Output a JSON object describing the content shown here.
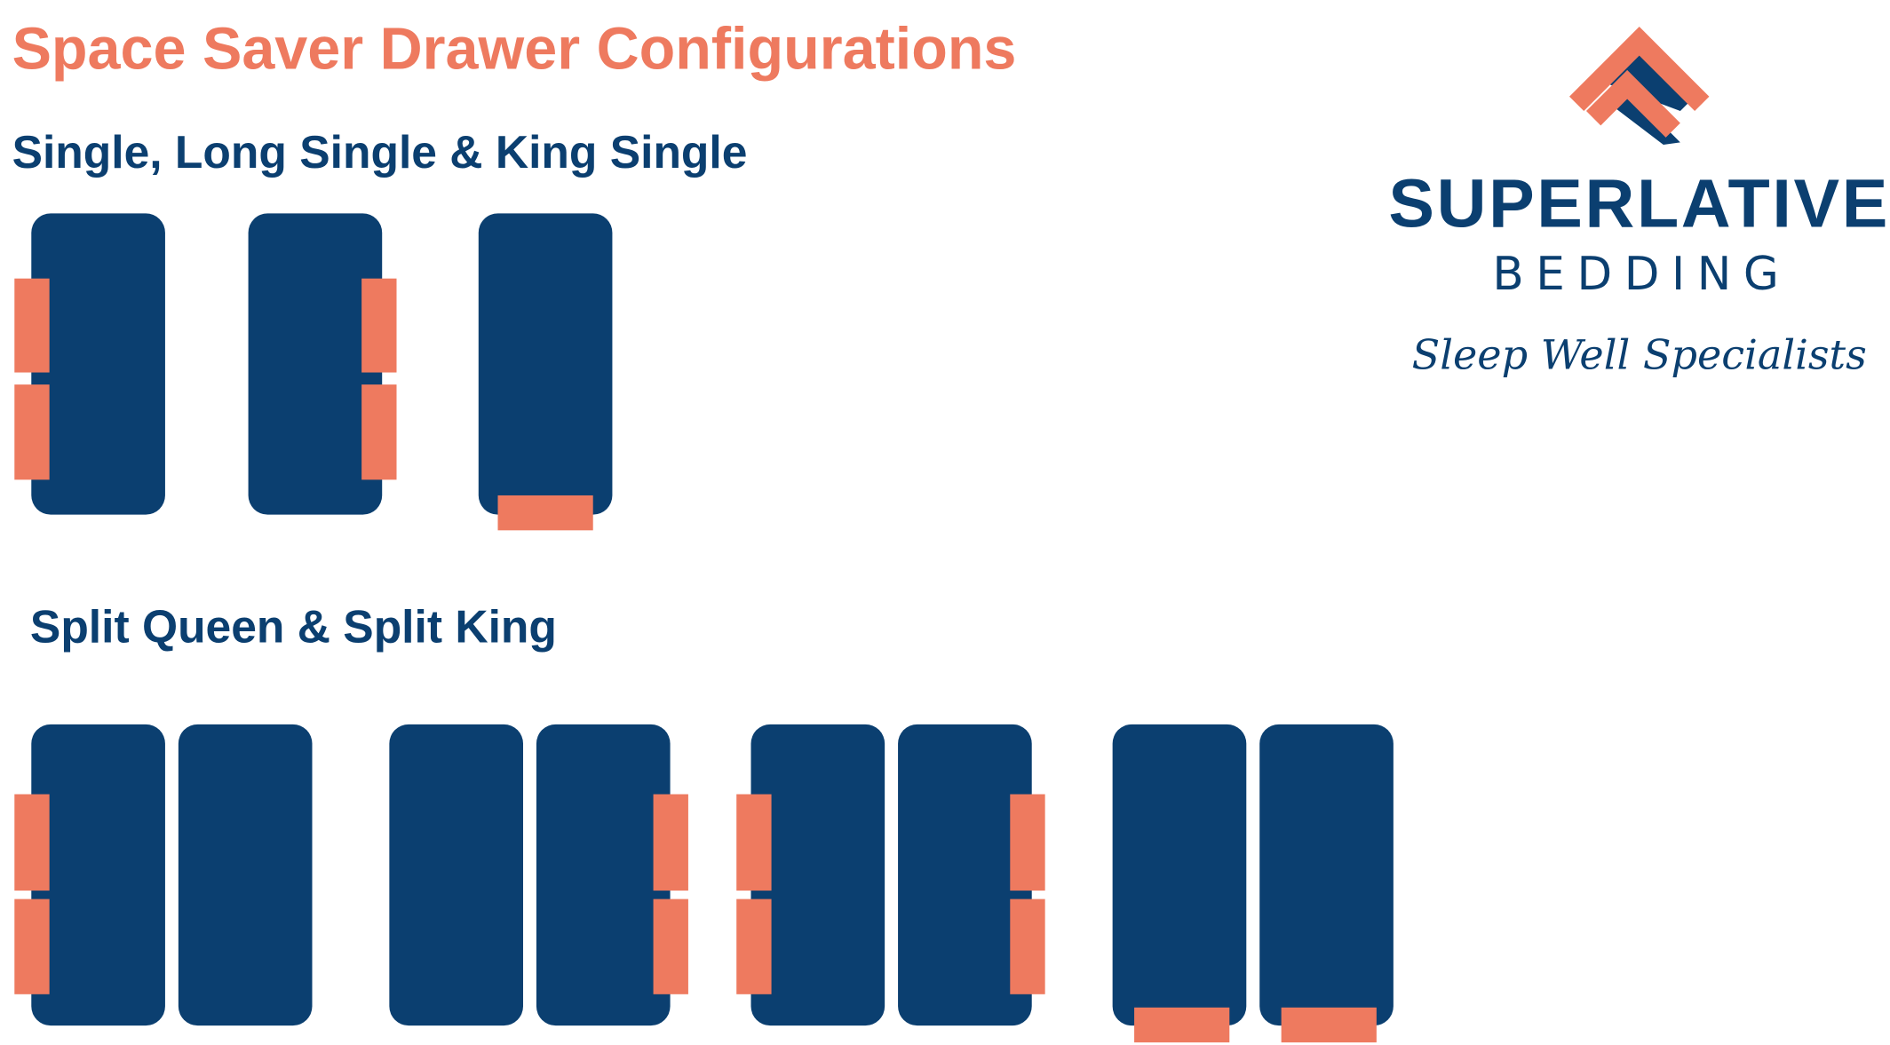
{
  "header": {
    "title": "Space Saver Drawer Configurations"
  },
  "sections": [
    {
      "heading": "Single, Long Single & King Single"
    },
    {
      "heading": "Split Queen & Split King"
    }
  ],
  "logo": {
    "brand": "SUPERLATIVE",
    "subbrand": "BEDDING",
    "tagline": "Sleep Well Specialists"
  }
}
